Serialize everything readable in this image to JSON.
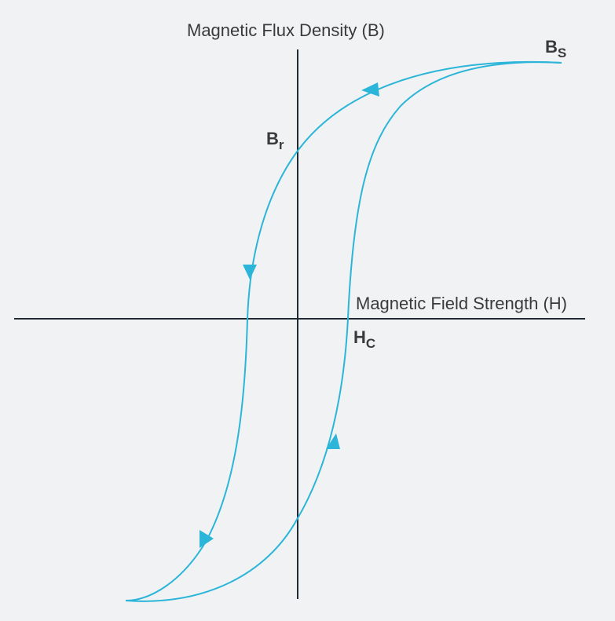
{
  "axes": {
    "y_label": "Magnetic Flux Density (B)",
    "x_label": "Magnetic Field Strength (H)"
  },
  "points": [
    {
      "symbol": "B",
      "subscript": "S"
    },
    {
      "symbol": "B",
      "subscript": "r"
    },
    {
      "symbol": "H",
      "subscript": "C"
    }
  ]
}
